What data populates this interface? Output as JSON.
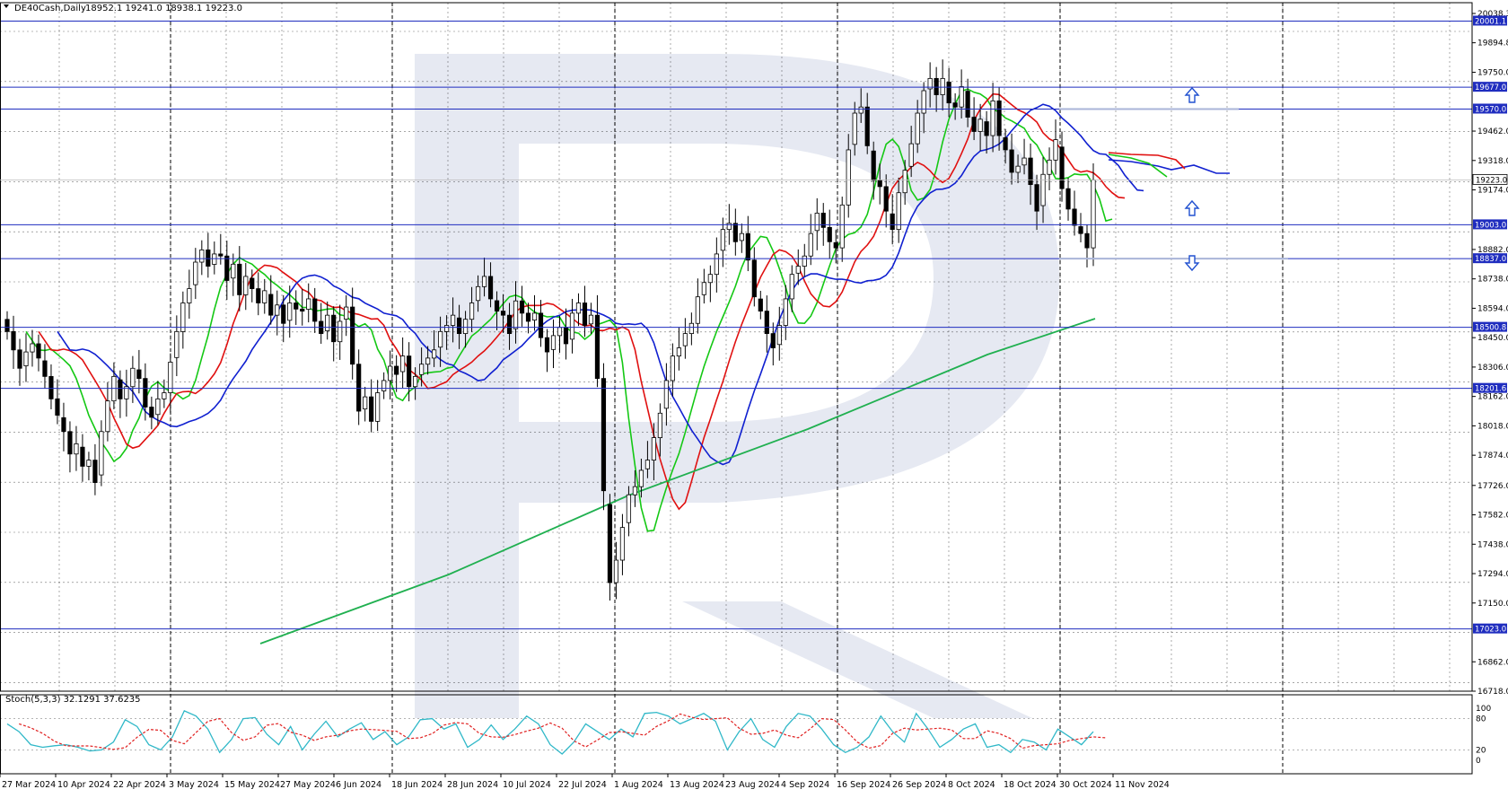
{
  "colors": {
    "background": "#ffffff",
    "grid": "#000000",
    "level_line": "#1f2dbf",
    "candle": "#000000",
    "ma_green": "#14c814",
    "ma_red": "#e01010",
    "ma_blue": "#1020d0",
    "ma_slow": "#20b050",
    "stoch_main": "#30b8c8",
    "stoch_signal": "#e02020",
    "watermark": "#e6e9f2",
    "projection": "#aab4d8",
    "arrow": "#2050d0"
  },
  "header": {
    "symbol_label": "DE40Cash,Daily",
    "ohlc_values": "18952.1 19241.0 18938.1 19223.0"
  },
  "stochastic": {
    "label": "Stoch(5,3,3) 32.1291 37.6235",
    "scale_labels": [
      "100",
      "80",
      "20",
      "0"
    ]
  },
  "price_axis": {
    "tick_labels": [
      "20038.3",
      "19894.8",
      "19750.0",
      "19462.0",
      "19318.0",
      "19174.0",
      "18882.0",
      "18738.0",
      "18594.0",
      "18450.0",
      "18306.0",
      "18162.0",
      "18018.0",
      "17874.0",
      "17726.0",
      "17582.0",
      "17438.0",
      "17294.0",
      "17150.0",
      "16862.0",
      "16718.0"
    ],
    "current_price_label": "19223.0"
  },
  "levels": [
    {
      "label": "20001.1"
    },
    {
      "label": "19677.0"
    },
    {
      "label": "19570.0"
    },
    {
      "label": "19003.0"
    },
    {
      "label": "18837.0"
    },
    {
      "label": "18500.8"
    },
    {
      "label": "18201.6"
    },
    {
      "label": "17023.0"
    }
  ],
  "date_axis": {
    "labels": [
      "27 Mar 2024",
      "10 Apr 2024",
      "22 Apr 2024",
      "3 May 2024",
      "15 May 2024",
      "27 May 2024",
      "6 Jun 2024",
      "18 Jun 2024",
      "28 Jun 2024",
      "10 Jul 2024",
      "22 Jul 2024",
      "1 Aug 2024",
      "13 Aug 2024",
      "23 Aug 2024",
      "4 Sep 2024",
      "16 Sep 2024",
      "26 Sep 2024",
      "8 Oct 2024",
      "18 Oct 2024",
      "30 Oct 2024",
      "11 Nov 2024"
    ]
  },
  "forecast_arrows": [
    {
      "direction": "up",
      "icon": "up-arrow-icon"
    },
    {
      "direction": "up",
      "icon": "up-arrow-icon"
    },
    {
      "direction": "down",
      "icon": "down-arrow-icon"
    }
  ]
}
